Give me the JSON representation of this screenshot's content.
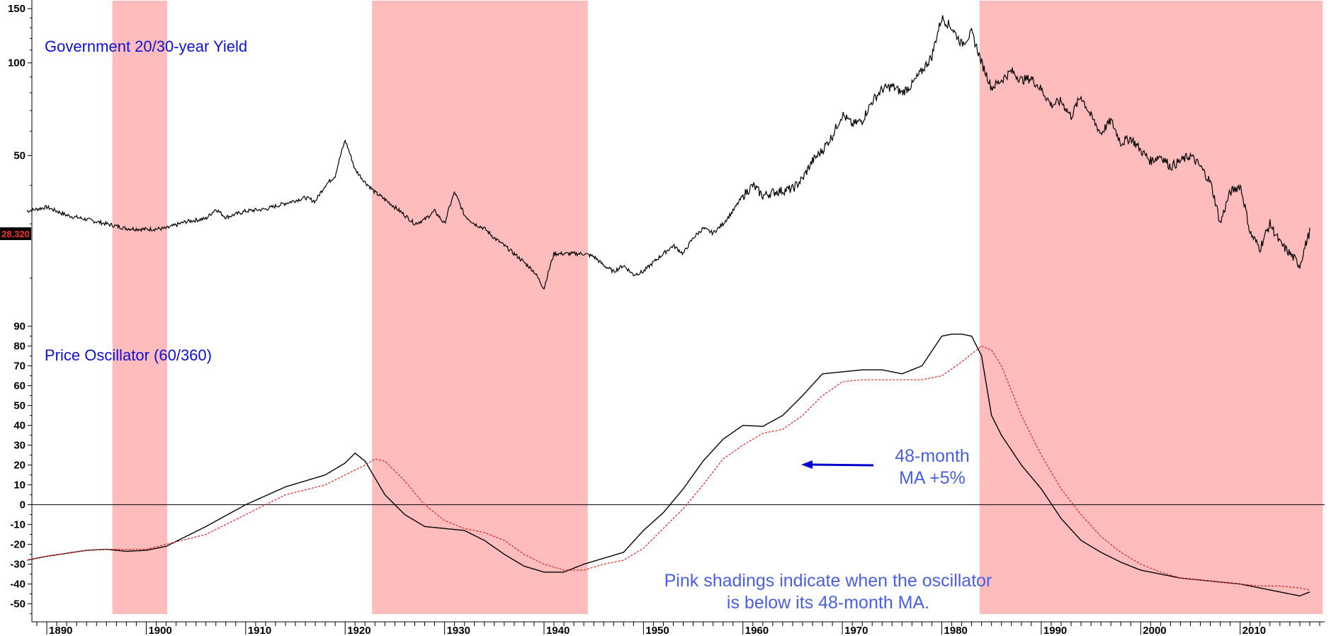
{
  "chart_data": [
    {
      "type": "line",
      "title": "Government 20/30-year Yield",
      "y_scale": "log",
      "ylim": [
        14,
        160
      ],
      "y_ticks": [
        "150",
        "100",
        "50"
      ],
      "y_tick_values": [
        150,
        100,
        50
      ],
      "current_value_label": "28.320",
      "current_value": 28.32,
      "series": [
        {
          "color": "#000000",
          "x": [
            1888,
            1890,
            1892,
            1894,
            1896,
            1898,
            1900,
            1902,
            1904,
            1906,
            1907,
            1908,
            1910,
            1912,
            1914,
            1916,
            1917,
            1918,
            1919,
            1920,
            1921,
            1922,
            1923,
            1924,
            1926,
            1927,
            1928,
            1929,
            1930,
            1931,
            1932,
            1933,
            1934,
            1935,
            1936,
            1937,
            1938,
            1939,
            1940,
            1941,
            1942,
            1943,
            1944,
            1945,
            1946,
            1947,
            1948,
            1949,
            1950,
            1951,
            1952,
            1953,
            1954,
            1955,
            1956,
            1957,
            1958,
            1959,
            1960,
            1961,
            1962,
            1963,
            1964,
            1965,
            1966,
            1967,
            1968,
            1969,
            1970,
            1971,
            1972,
            1973,
            1974,
            1975,
            1976,
            1977,
            1978,
            1979,
            1980,
            1981,
            1982,
            1983,
            1984,
            1985,
            1986,
            1987,
            1988,
            1989,
            1990,
            1991,
            1992,
            1993,
            1994,
            1995,
            1996,
            1997,
            1998,
            1999,
            2000,
            2001,
            2002,
            2003,
            2004,
            2005,
            2006,
            2007,
            2008,
            2009,
            2010,
            2011,
            2012,
            2013,
            2014,
            2015,
            2016,
            2017
          ],
          "y": [
            33,
            34,
            32,
            31,
            30,
            29,
            28.8,
            29,
            30.5,
            31.2,
            33.5,
            31.5,
            33,
            33.5,
            35,
            36.5,
            35.5,
            40,
            43,
            56,
            45,
            41,
            38,
            36,
            32,
            30,
            31,
            33,
            30,
            38,
            32,
            30,
            29,
            27,
            25.5,
            24,
            22.5,
            21,
            18.5,
            24,
            24,
            24,
            24,
            23.5,
            22,
            21,
            22,
            20.5,
            21,
            22.5,
            24,
            25.5,
            24,
            27,
            29,
            28,
            30,
            33,
            37,
            40,
            37,
            38,
            38.5,
            39,
            42,
            48,
            52,
            58,
            68,
            63,
            65,
            75,
            82,
            84,
            80,
            85,
            94,
            105,
            140,
            130,
            115,
            125,
            100,
            83,
            88,
            94,
            88,
            89,
            82,
            73,
            75,
            67,
            78,
            67,
            59,
            65,
            55,
            57,
            52,
            48,
            50,
            46,
            48,
            50,
            46,
            41,
            30,
            38,
            40,
            28,
            25,
            30,
            26,
            24,
            22,
            28.3
          ]
        }
      ]
    },
    {
      "type": "line",
      "title": "Price Oscillator (60/360)",
      "ylim": [
        -58,
        92
      ],
      "y_ticks": [
        "90",
        "80",
        "70",
        "60",
        "50",
        "40",
        "30",
        "20",
        "10",
        "0",
        "-10",
        "-20",
        "-30",
        "-40",
        "-50"
      ],
      "y_tick_values": [
        90,
        80,
        70,
        60,
        50,
        40,
        30,
        20,
        10,
        0,
        -10,
        -20,
        -30,
        -40,
        -50
      ],
      "zero_line": true,
      "series": [
        {
          "color": "#000000",
          "style": "solid",
          "x": [
            1888,
            1890,
            1894,
            1896,
            1898,
            1900,
            1902,
            1906,
            1910,
            1914,
            1918,
            1920,
            1921,
            1922,
            1924,
            1926,
            1928,
            1930,
            1932,
            1934,
            1936,
            1938,
            1940,
            1942,
            1944,
            1946,
            1948,
            1950,
            1952,
            1954,
            1956,
            1958,
            1960,
            1962,
            1964,
            1966,
            1968,
            1970,
            1972,
            1974,
            1976,
            1978,
            1980,
            1981,
            1982,
            1983,
            1984,
            1985,
            1986,
            1988,
            1990,
            1992,
            1994,
            1996,
            1998,
            2000,
            2002,
            2004,
            2006,
            2008,
            2010,
            2012,
            2014,
            2016,
            2017
          ],
          "y": [
            -28,
            -26,
            -23,
            -22.5,
            -23.5,
            -23,
            -21,
            -11,
            0,
            9,
            15,
            21,
            26,
            22,
            5,
            -5,
            -11,
            -12,
            -13,
            -18,
            -25,
            -31,
            -34,
            -34,
            -30,
            -27,
            -24,
            -13,
            -4,
            8,
            22,
            33,
            40,
            39.5,
            45,
            55,
            66,
            67,
            68,
            68,
            66,
            70,
            85,
            86,
            86,
            85,
            75,
            45,
            35,
            20,
            8,
            -7,
            -18,
            -24,
            -29,
            -33,
            -35,
            -37,
            -38,
            -39,
            -40,
            -42,
            -44,
            -46,
            -44
          ]
        },
        {
          "color": "#e02020",
          "style": "dotted",
          "label": "48-month MA +5%",
          "x": [
            1888,
            1890,
            1894,
            1896,
            1898,
            1900,
            1902,
            1906,
            1910,
            1914,
            1918,
            1920,
            1922,
            1923,
            1924,
            1926,
            1928,
            1930,
            1932,
            1934,
            1936,
            1938,
            1940,
            1942,
            1944,
            1946,
            1948,
            1950,
            1952,
            1954,
            1956,
            1958,
            1960,
            1962,
            1964,
            1966,
            1968,
            1970,
            1972,
            1974,
            1976,
            1978,
            1980,
            1982,
            1984,
            1985,
            1986,
            1988,
            1990,
            1992,
            1994,
            1996,
            1998,
            2000,
            2002,
            2004,
            2006,
            2008,
            2010,
            2012,
            2014,
            2016,
            2017
          ],
          "y": [
            -28,
            -26,
            -23,
            -22.5,
            -22.5,
            -22.5,
            -20,
            -15,
            -5,
            5,
            10,
            15,
            20,
            23,
            22,
            12,
            0,
            -8,
            -12,
            -14,
            -18,
            -25,
            -30,
            -33,
            -33,
            -30,
            -28,
            -22,
            -12,
            -2,
            10,
            23,
            30,
            36,
            38,
            45,
            55,
            62,
            63,
            63,
            63,
            63,
            65,
            72,
            80,
            78,
            70,
            45,
            25,
            8,
            -5,
            -16,
            -24,
            -30,
            -34,
            -37,
            -38,
            -39,
            -40,
            -41,
            -41,
            -42,
            -43
          ]
        }
      ],
      "annotations": [
        {
          "line1": "48-month",
          "line2": "MA +5%",
          "arrow_to": [
            1963,
            20
          ]
        },
        {
          "line1": "Pink shadings indicate when the oscillator",
          "line2": "is below its 48-month MA."
        }
      ]
    }
  ],
  "x_axis": {
    "xlim": [
      1888.5,
      2018.5
    ],
    "ticks": [
      "1890",
      "1900",
      "1910",
      "1920",
      "1930",
      "1940",
      "1950",
      "1960",
      "1970",
      "1980",
      "1990",
      "2000",
      "2010"
    ],
    "tick_values": [
      1890,
      1900,
      1910,
      1920,
      1930,
      1940,
      1950,
      1960,
      1970,
      1980,
      1990,
      2000,
      2010
    ]
  },
  "shading": {
    "color": "#ffbcbc",
    "periods": [
      [
        1896.6,
        1902.1
      ],
      [
        1922.7,
        1944.4
      ],
      [
        1983.8,
        2018.3
      ]
    ]
  }
}
